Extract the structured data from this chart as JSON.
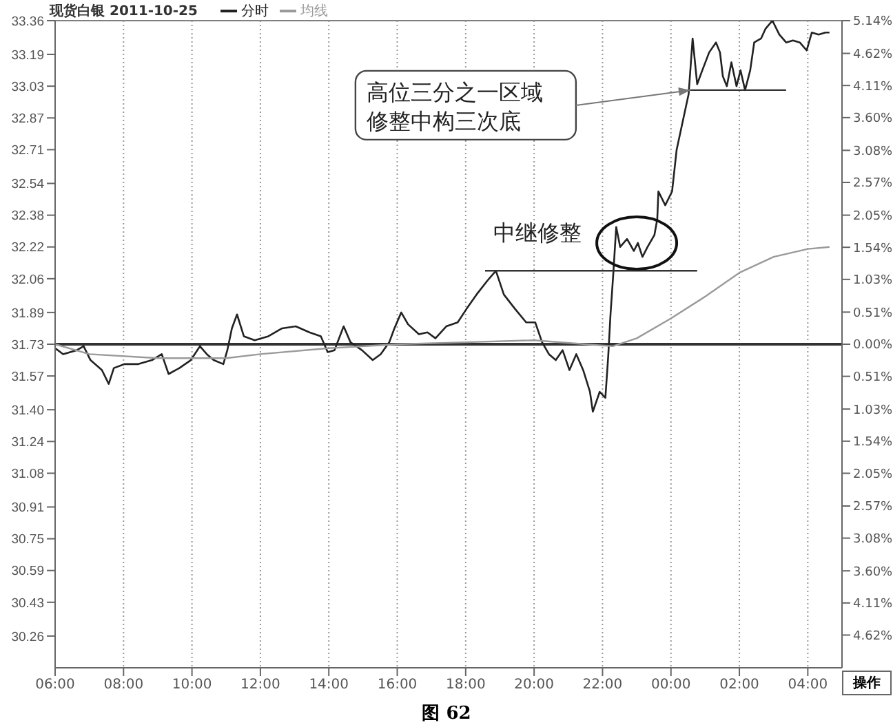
{
  "chart_data": {
    "type": "line",
    "title": "现货白银 2011-10-25",
    "xlim": [
      "2011-10-25T06:00",
      "2011-10-26T05:00"
    ],
    "xticks": [
      {
        "value": "2011-10-25T06:00",
        "label": "06:00"
      },
      {
        "value": "2011-10-25T08:00",
        "label": "08:00"
      },
      {
        "value": "2011-10-25T10:00",
        "label": "10:00"
      },
      {
        "value": "2011-10-25T12:00",
        "label": "12:00"
      },
      {
        "value": "2011-10-25T14:00",
        "label": "14:00"
      },
      {
        "value": "2011-10-25T16:00",
        "label": "16:00"
      },
      {
        "value": "2011-10-25T18:00",
        "label": "18:00"
      },
      {
        "value": "2011-10-25T20:00",
        "label": "20:00"
      },
      {
        "value": "2011-10-25T22:00",
        "label": "22:00"
      },
      {
        "value": "2011-10-26T00:00",
        "label": "00:00"
      },
      {
        "value": "2011-10-26T02:00",
        "label": "02:00"
      },
      {
        "value": "2011-10-26T04:00",
        "label": "04:00"
      }
    ],
    "ylim": [
      30.1,
      33.36
    ],
    "yticks": [
      33.36,
      33.19,
      33.03,
      32.87,
      32.71,
      32.54,
      32.38,
      32.22,
      32.06,
      31.89,
      31.73,
      31.57,
      {
        "value": 31.4,
        "label": "31.40"
      },
      31.24,
      31.08,
      30.91,
      30.75,
      30.59,
      30.43,
      30.26
    ],
    "y2lim": [
      -5.14,
      5.14
    ],
    "y2ticks": [
      {
        "value": 5.14,
        "label": "5.14%"
      },
      {
        "value": 4.62,
        "label": "4.62%"
      },
      {
        "value": 4.11,
        "label": "4.11%"
      },
      {
        "value": 3.6,
        "label": "3.60%"
      },
      {
        "value": 3.08,
        "label": "3.08%"
      },
      {
        "value": 2.57,
        "label": "2.57%"
      },
      {
        "value": 2.05,
        "label": "2.05%"
      },
      {
        "value": 1.54,
        "label": "1.54%"
      },
      {
        "value": 1.03,
        "label": "1.03%"
      },
      {
        "value": 0.51,
        "label": "0.51%"
      },
      {
        "value": 0,
        "label": "0.00%"
      },
      {
        "value": -0.51,
        "label": "0.51%"
      },
      {
        "value": -1.03,
        "label": "1.03%"
      },
      {
        "value": -1.54,
        "label": "1.54%"
      },
      {
        "value": -2.05,
        "label": "2.05%"
      },
      {
        "value": -2.57,
        "label": "2.57%"
      },
      {
        "value": -3.08,
        "label": "3.08%"
      },
      {
        "value": -3.6,
        "label": "3.60%"
      },
      {
        "value": -4.11,
        "label": "4.11%"
      },
      {
        "value": -4.62,
        "label": "4.62%"
      }
    ],
    "grid": true,
    "legend": "top left",
    "marker": "none",
    "line_style": "solid",
    "ref_lines": [
      {
        "axis": "y",
        "value": 31.73,
        "color": "#333333"
      }
    ],
    "series": [
      {
        "name": "分时",
        "color": "#222222",
        "x": [
          "2011-10-25T06:00",
          "2011-10-25T06:14",
          "2011-10-25T06:38",
          "2011-10-25T06:50",
          "2011-10-25T07:02",
          "2011-10-25T07:22",
          "2011-10-25T07:34",
          "2011-10-25T07:43",
          "2011-10-25T08:02",
          "2011-10-25T08:26",
          "2011-10-25T08:50",
          "2011-10-25T09:07",
          "2011-10-25T09:19",
          "2011-10-25T09:38",
          "2011-10-25T09:58",
          "2011-10-25T10:14",
          "2011-10-25T10:26",
          "2011-10-25T10:38",
          "2011-10-25T10:55",
          "2011-10-25T11:02",
          "2011-10-25T11:10",
          "2011-10-25T11:19",
          "2011-10-25T11:31",
          "2011-10-25T11:50",
          "2011-10-25T12:14",
          "2011-10-25T12:38",
          "2011-10-25T13:02",
          "2011-10-25T13:26",
          "2011-10-25T13:46",
          "2011-10-25T13:58",
          "2011-10-25T14:10",
          "2011-10-25T14:26",
          "2011-10-25T14:38",
          "2011-10-25T14:58",
          "2011-10-25T15:17",
          "2011-10-25T15:31",
          "2011-10-25T15:46",
          "2011-10-25T15:55",
          "2011-10-25T16:07",
          "2011-10-25T16:19",
          "2011-10-25T16:38",
          "2011-10-25T16:53",
          "2011-10-25T17:07",
          "2011-10-25T17:26",
          "2011-10-25T17:46",
          "2011-10-25T18:02",
          "2011-10-25T18:19",
          "2011-10-25T18:38",
          "2011-10-25T18:53",
          "2011-10-25T19:07",
          "2011-10-25T19:26",
          "2011-10-25T19:46",
          "2011-10-25T20:02",
          "2011-10-25T20:14",
          "2011-10-25T20:26",
          "2011-10-25T20:38",
          "2011-10-25T20:50",
          "2011-10-25T21:02",
          "2011-10-25T21:14",
          "2011-10-25T21:26",
          "2011-10-25T21:38",
          "2011-10-25T21:43",
          "2011-10-25T21:55",
          "2011-10-25T22:05",
          "2011-10-25T22:10",
          "2011-10-25T22:14",
          "2011-10-25T22:19",
          "2011-10-25T22:24",
          "2011-10-25T22:31",
          "2011-10-25T22:43",
          "2011-10-25T22:55",
          "2011-10-25T23:02",
          "2011-10-25T23:10",
          "2011-10-25T23:19",
          "2011-10-25T23:31",
          "2011-10-25T23:36",
          "2011-10-25T23:38",
          "2011-10-25T23:50",
          "2011-10-26T00:02",
          "2011-10-26T00:10",
          "2011-10-26T00:22",
          "2011-10-26T00:31",
          "2011-10-26T00:38",
          "2011-10-26T00:46",
          "2011-10-26T00:55",
          "2011-10-26T01:07",
          "2011-10-26T01:19",
          "2011-10-26T01:26",
          "2011-10-26T01:31",
          "2011-10-26T01:38",
          "2011-10-26T01:46",
          "2011-10-26T01:55",
          "2011-10-26T02:02",
          "2011-10-26T02:10",
          "2011-10-26T02:19",
          "2011-10-26T02:26",
          "2011-10-26T02:38",
          "2011-10-26T02:46",
          "2011-10-26T02:58",
          "2011-10-26T03:10",
          "2011-10-26T03:22",
          "2011-10-26T03:34",
          "2011-10-26T03:46",
          "2011-10-26T03:58",
          "2011-10-26T04:07",
          "2011-10-26T04:19",
          "2011-10-26T04:31",
          "2011-10-26T04:38"
        ],
        "values": [
          31.71,
          31.68,
          31.7,
          31.72,
          31.65,
          31.6,
          31.53,
          31.61,
          31.63,
          31.63,
          31.65,
          31.68,
          31.58,
          31.61,
          31.65,
          31.72,
          31.68,
          31.65,
          31.63,
          31.7,
          31.81,
          31.88,
          31.77,
          31.75,
          31.77,
          31.81,
          31.82,
          31.79,
          31.77,
          31.69,
          31.7,
          31.82,
          31.74,
          31.7,
          31.65,
          31.68,
          31.74,
          31.81,
          31.89,
          31.83,
          31.78,
          31.79,
          31.76,
          31.82,
          31.84,
          31.91,
          31.98,
          32.05,
          32.1,
          31.98,
          31.91,
          31.84,
          31.84,
          31.74,
          31.68,
          31.65,
          31.7,
          31.6,
          31.68,
          31.6,
          31.49,
          31.39,
          31.49,
          31.46,
          31.67,
          31.88,
          32.09,
          32.32,
          32.22,
          32.26,
          32.2,
          32.24,
          32.17,
          32.22,
          32.28,
          32.36,
          32.5,
          32.43,
          32.5,
          32.71,
          32.87,
          32.99,
          33.27,
          33.04,
          33.11,
          33.2,
          33.25,
          33.2,
          33.08,
          33.03,
          33.15,
          33.03,
          33.11,
          33.01,
          33.11,
          33.25,
          33.27,
          33.32,
          33.36,
          33.29,
          33.25,
          33.26,
          33.25,
          33.21,
          33.3,
          33.29,
          33.3,
          33.3
        ]
      },
      {
        "name": "均线",
        "color": "#9a9a9a",
        "x": [
          "2011-10-25T06:00",
          "2011-10-25T07:00",
          "2011-10-25T09:00",
          "2011-10-25T11:00",
          "2011-10-25T12:00",
          "2011-10-25T14:00",
          "2011-10-25T16:00",
          "2011-10-25T18:00",
          "2011-10-25T20:00",
          "2011-10-25T21:30",
          "2011-10-25T22:18",
          "2011-10-25T23:00",
          "2011-10-26T00:00",
          "2011-10-26T01:00",
          "2011-10-26T02:00",
          "2011-10-26T03:00",
          "2011-10-26T04:00",
          "2011-10-26T04:38"
        ],
        "values": [
          31.73,
          31.68,
          31.66,
          31.66,
          31.68,
          31.71,
          31.73,
          31.74,
          31.75,
          31.73,
          31.72,
          31.76,
          31.86,
          31.97,
          32.09,
          32.17,
          32.21,
          32.22
        ]
      },
      {
        "color": "#333333",
        "x": [
          "2011-10-25T18:34",
          "2011-10-26T00:46"
        ],
        "values": [
          32.1,
          32.1
        ]
      },
      {
        "color": "#333333",
        "x": [
          "2011-10-26T00:34",
          "2011-10-26T03:22"
        ],
        "values": [
          33.01,
          33.01
        ]
      }
    ],
    "annotations": [
      "高位三分之一区域修整中构三次底",
      {
        "text": "中继修整",
        "x": "2011-10-25T23:00",
        "y": 32.24
      },
      "操作",
      "图 62"
    ]
  }
}
